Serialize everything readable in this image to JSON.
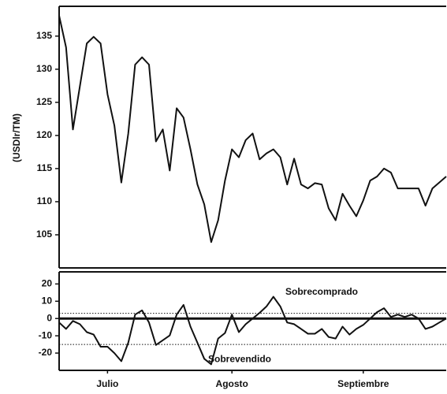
{
  "chart_data": [
    {
      "type": "line",
      "y_label": "(USDlr/TM)",
      "color": "#111111",
      "ylim": [
        100,
        139.5
      ],
      "yticks": [
        105,
        110,
        115,
        120,
        125,
        130,
        135
      ],
      "values": [
        138.1,
        133.3,
        120.9,
        127.4,
        133.9,
        134.9,
        133.9,
        126.2,
        121.5,
        112.9,
        120.3,
        130.7,
        131.8,
        130.7,
        119.1,
        120.9,
        114.7,
        124.1,
        122.7,
        117.9,
        112.6,
        109.6,
        103.9,
        107.2,
        113.2,
        117.9,
        116.7,
        119.3,
        120.3,
        116.4,
        117.3,
        117.9,
        116.7,
        112.6,
        116.5,
        112.6,
        112.0,
        112.8,
        112.6,
        109.0,
        107.2,
        111.2,
        109.4,
        107.8,
        110.2,
        113.2,
        113.8,
        115.0,
        114.4,
        112.0,
        112.0,
        112.0,
        112.0,
        109.4,
        112.0,
        112.9,
        113.8
      ]
    },
    {
      "type": "line",
      "color": "#111111",
      "ylim": [
        -30,
        27
      ],
      "yticks": [
        20,
        10,
        0,
        -10,
        -20
      ],
      "reference_lines": [
        {
          "value": 3,
          "label": "Sobrecomprado"
        },
        {
          "value": -15,
          "label": "Sobrevendido"
        }
      ],
      "categories": [
        null,
        null,
        null,
        null,
        null,
        null,
        null,
        "Julio",
        null,
        null,
        null,
        null,
        null,
        null,
        null,
        null,
        null,
        null,
        null,
        null,
        null,
        null,
        null,
        null,
        null,
        "Agosto",
        null,
        null,
        null,
        null,
        null,
        null,
        null,
        null,
        null,
        null,
        null,
        null,
        null,
        null,
        null,
        null,
        null,
        null,
        "Septiembre",
        null,
        null,
        null,
        null,
        null,
        null,
        null,
        null,
        null,
        null,
        null,
        null
      ],
      "values": [
        -2.3,
        -6,
        -1.4,
        -3.3,
        -7.9,
        -9.3,
        -16.3,
        -16.3,
        -20,
        -24.7,
        -14,
        2.3,
        4.7,
        -2.3,
        -15.3,
        -12.6,
        -9.8,
        2.3,
        7.9,
        -4.7,
        -14,
        -23.3,
        -26.5,
        -11.6,
        -8.4,
        2.3,
        -7.9,
        -3.3,
        0,
        3.3,
        7,
        12.6,
        7,
        -2.3,
        -3.3,
        -6,
        -8.8,
        -8.8,
        -6,
        -10.7,
        -11.6,
        -4.7,
        -9.3,
        -6,
        -3.7,
        0,
        3.7,
        6,
        0.9,
        2.3,
        0.9,
        2.3,
        0,
        -6,
        -4.7,
        -2.3,
        0
      ]
    }
  ]
}
